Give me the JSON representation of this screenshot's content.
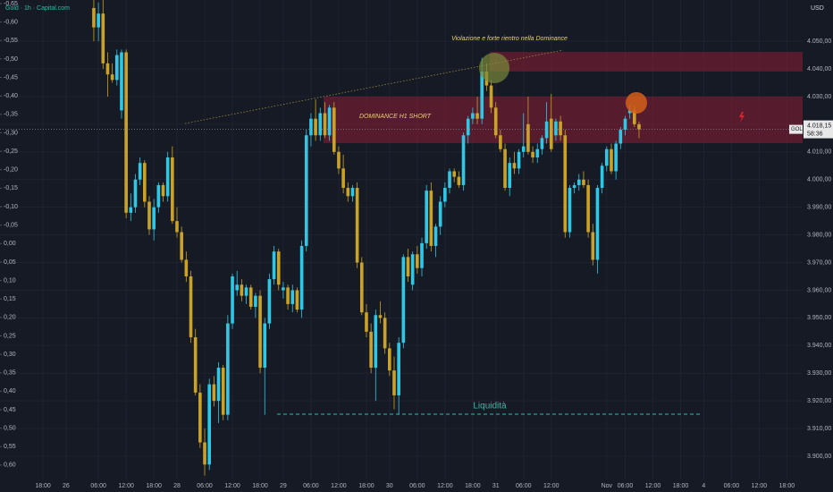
{
  "chart_data": {
    "type": "candlestick",
    "title": "Gold · 1h · Capital.com",
    "currency": "USD",
    "annotation_top": "Violazione e forte rientro nella Dominance",
    "annotation_zone": "DOMINANCE H1 SHORT",
    "annotation_liquidity": "Liquidità",
    "symbol_tag": "GOLD",
    "last_price_label": "4.018,15",
    "countdown": "58:36",
    "up_color": "#2ec8e6",
    "down_color": "#c9a227",
    "open": [
      4062,
      4055,
      4060,
      4042,
      4038,
      4036,
      4025,
      4046,
      3988,
      3990,
      4000,
      4006,
      3992,
      3982,
      3990,
      3998,
      3994,
      4008,
      3985,
      3981,
      3971,
      3965,
      3943,
      3923,
      3905,
      3897,
      3926,
      3920,
      3932,
      3915,
      3948,
      3960,
      3962,
      3958,
      3961,
      3954,
      3958,
      3932,
      3948,
      3964,
      3974,
      3960,
      3961,
      3955,
      3960,
      3953,
      3976,
      4016,
      4022,
      4016,
      4024,
      4016,
      4026,
      4010,
      4004,
      3997,
      3994,
      3997,
      3970,
      3952,
      3945,
      3932,
      3951,
      3950,
      3939,
      3931,
      3922,
      3941,
      3972,
      3962,
      3973,
      3968,
      3977,
      3996,
      3976,
      3983,
      3992,
      3997,
      4003,
      4001,
      3998,
      4016,
      4022,
      4024,
      4022,
      4039,
      4034,
      4026,
      4016,
      4011,
      3997,
      4006,
      4004,
      4010,
      4020,
      4010,
      4008,
      4011,
      4015,
      4022,
      4016,
      4021,
      4016,
      3981,
      3997,
      3998,
      4000,
      3998,
      3981,
      3971,
      3997,
      4005,
      4011,
      4003,
      4013,
      4018,
      4024,
      4025,
      4020
    ],
    "high": [
      4066,
      4064,
      4066,
      4046,
      4042,
      4047,
      4047,
      4047,
      3995,
      4002,
      4008,
      4007,
      3994,
      3993,
      3999,
      3999,
      4010,
      4012,
      3990,
      3983,
      3974,
      3967,
      3946,
      3926,
      3910,
      3928,
      3929,
      3934,
      3933,
      3951,
      3966,
      3967,
      3964,
      3962,
      3962,
      3959,
      3960,
      3950,
      3966,
      3976,
      3975,
      3963,
      3962,
      3962,
      3961,
      3978,
      4018,
      4024,
      4029,
      4026,
      4028,
      4027,
      4028,
      4012,
      4009,
      3999,
      3998,
      3999,
      3972,
      3955,
      3948,
      3953,
      3956,
      3952,
      3941,
      3936,
      3943,
      3973,
      3975,
      3974,
      3976,
      3979,
      3998,
      3999,
      3984,
      3994,
      3999,
      4004,
      4004,
      4003,
      4017,
      4023,
      4026,
      4030,
      4044,
      4042,
      4036,
      4028,
      4018,
      4013,
      4008,
      4010,
      4011,
      4024,
      4030,
      4012,
      4013,
      4016,
      4028,
      4031,
      4022,
      4023,
      4018,
      3998,
      3999,
      4002,
      4003,
      4000,
      3984,
      3998,
      4006,
      4012,
      4013,
      4014,
      4019,
      4023,
      4027,
      4027,
      4021
    ],
    "low": [
      4050,
      4050,
      4040,
      4030,
      4035,
      4034,
      4022,
      3986,
      3985,
      3988,
      3998,
      3990,
      3980,
      3978,
      3988,
      3992,
      3992,
      3984,
      3979,
      3970,
      3963,
      3941,
      3922,
      3903,
      3893,
      3895,
      3918,
      3912,
      3913,
      3913,
      3946,
      3958,
      3956,
      3955,
      3953,
      3950,
      3930,
      3915,
      3946,
      3962,
      3960,
      3957,
      3953,
      3952,
      3952,
      3950,
      3974,
      4012,
      4014,
      4014,
      4015,
      4014,
      4009,
      4002,
      3995,
      3992,
      3992,
      3968,
      3951,
      3943,
      3930,
      3920,
      3948,
      3937,
      3929,
      3917,
      3915,
      3939,
      3963,
      3960,
      3966,
      3965,
      3975,
      3974,
      3972,
      3980,
      3990,
      3995,
      3999,
      3997,
      3996,
      4013,
      4020,
      4020,
      4020,
      4032,
      4024,
      4015,
      4010,
      3996,
      3994,
      4002,
      4002,
      4008,
      4009,
      4006,
      4006,
      4009,
      4013,
      4010,
      4014,
      4014,
      3979,
      3979,
      3995,
      3996,
      3997,
      3979,
      3969,
      3966,
      3995,
      4003,
      4002,
      4000,
      4011,
      4016,
      4022,
      4019,
      4015
    ],
    "close": [
      4055,
      4060,
      4042,
      4038,
      4036,
      4045,
      4046,
      3988,
      3990,
      4000,
      4006,
      3992,
      3982,
      3990,
      3998,
      3994,
      4008,
      3985,
      3981,
      3971,
      3965,
      3943,
      3923,
      3905,
      3897,
      3926,
      3920,
      3932,
      3915,
      3948,
      3965,
      3962,
      3958,
      3961,
      3954,
      3958,
      3932,
      3948,
      3964,
      3974,
      3962,
      3961,
      3955,
      3960,
      3953,
      3976,
      4016,
      4022,
      4016,
      4024,
      4016,
      4026,
      4010,
      4004,
      3997,
      3994,
      3997,
      3970,
      3952,
      3945,
      3932,
      3951,
      3950,
      3939,
      3931,
      3922,
      3941,
      3972,
      3965,
      3973,
      3968,
      3977,
      3996,
      3976,
      3983,
      3992,
      3997,
      4003,
      4001,
      3998,
      4016,
      4022,
      4024,
      4022,
      4039,
      4034,
      4026,
      4016,
      4011,
      3997,
      4006,
      4004,
      4010,
      4012,
      4010,
      4008,
      4011,
      4015,
      4021,
      4011,
      4021,
      4016,
      3981,
      3997,
      3998,
      4000,
      3998,
      3981,
      3971,
      3997,
      4005,
      4011,
      4003,
      4013,
      4018,
      4022,
      4025,
      4020,
      4018.15
    ],
    "xlim": [
      -20.3,
      153.4
    ],
    "xticks": [
      {
        "value": -11,
        "label": "18:00"
      },
      {
        "value": -6,
        "label": "26"
      },
      {
        "value": 1,
        "label": "06:00"
      },
      {
        "value": 7,
        "label": "12:00"
      },
      {
        "value": 13,
        "label": "18:00"
      },
      {
        "value": 18,
        "label": "28"
      },
      {
        "value": 24,
        "label": "06:00"
      },
      {
        "value": 30,
        "label": "12:00"
      },
      {
        "value": 36,
        "label": "18:00"
      },
      {
        "value": 41,
        "label": "29"
      },
      {
        "value": 47,
        "label": "06:00"
      },
      {
        "value": 53,
        "label": "12:00"
      },
      {
        "value": 59,
        "label": "18:00"
      },
      {
        "value": 64,
        "label": "30"
      },
      {
        "value": 70,
        "label": "06:00"
      },
      {
        "value": 76,
        "label": "12:00"
      },
      {
        "value": 82,
        "label": "18:00"
      },
      {
        "value": 87,
        "label": "31"
      },
      {
        "value": 93,
        "label": "06:00"
      },
      {
        "value": 99,
        "label": "12:00"
      },
      {
        "value": 111,
        "label": "Nov"
      },
      {
        "value": 115,
        "label": "06:00"
      },
      {
        "value": 121,
        "label": "12:00"
      },
      {
        "value": 127,
        "label": "18:00"
      },
      {
        "value": 132,
        "label": "4"
      },
      {
        "value": 138,
        "label": "06:00"
      },
      {
        "value": 144,
        "label": "12:00"
      },
      {
        "value": 150,
        "label": "18:00"
      }
    ],
    "ylim": [
      3891.6,
      4064.9
    ],
    "yticks": [
      {
        "value": 3900,
        "label": "3.900,00"
      },
      {
        "value": 3910,
        "label": "3.910,00"
      },
      {
        "value": 3920,
        "label": "3.920,00"
      },
      {
        "value": 3930,
        "label": "3.930,00"
      },
      {
        "value": 3940,
        "label": "3.940,00"
      },
      {
        "value": 3950,
        "label": "3.950,00"
      },
      {
        "value": 3960,
        "label": "3.960,00"
      },
      {
        "value": 3970,
        "label": "3.970,00"
      },
      {
        "value": 3980,
        "label": "3.980,00"
      },
      {
        "value": 3990,
        "label": "3.990,00"
      },
      {
        "value": 4000,
        "label": "4.000,00"
      },
      {
        "value": 4010,
        "label": "4.010,00"
      },
      {
        "value": 4020,
        "label": "4.020,00"
      },
      {
        "value": 4030,
        "label": "4.030,00"
      },
      {
        "value": 4040,
        "label": "4.040,00"
      },
      {
        "value": 4050,
        "label": "4.050,00"
      }
    ],
    "y2lim": [
      0.639,
      -0.6597
    ],
    "y2ticks": [
      {
        "value": -0.65,
        "label": "-0,65"
      },
      {
        "value": -0.6,
        "label": "-0,60"
      },
      {
        "value": -0.55,
        "label": "-0,55"
      },
      {
        "value": -0.5,
        "label": "-0,50"
      },
      {
        "value": -0.45,
        "label": "-0,45"
      },
      {
        "value": -0.4,
        "label": "-0,40"
      },
      {
        "value": -0.35,
        "label": "-0,35"
      },
      {
        "value": -0.3,
        "label": "-0,30"
      },
      {
        "value": -0.25,
        "label": "-0,25"
      },
      {
        "value": -0.2,
        "label": "-0,20"
      },
      {
        "value": -0.15,
        "label": "-0,15"
      },
      {
        "value": -0.1,
        "label": "-0,10"
      },
      {
        "value": -0.05,
        "label": "-0,05"
      },
      {
        "value": 0,
        "label": "0,00"
      },
      {
        "value": 0.05,
        "label": "0,05"
      },
      {
        "value": 0.1,
        "label": "0,10"
      },
      {
        "value": 0.15,
        "label": "0,15"
      },
      {
        "value": 0.2,
        "label": "0,20"
      },
      {
        "value": 0.25,
        "label": "0,25"
      },
      {
        "value": 0.3,
        "label": "0,30"
      },
      {
        "value": 0.35,
        "label": "0,35"
      },
      {
        "value": 0.4,
        "label": "0,40"
      },
      {
        "value": 0.45,
        "label": "0,45"
      },
      {
        "value": 0.5,
        "label": "0,50"
      },
      {
        "value": 0.55,
        "label": "0,55"
      },
      {
        "value": 0.6,
        "label": "0,60"
      }
    ],
    "grid": true
  }
}
